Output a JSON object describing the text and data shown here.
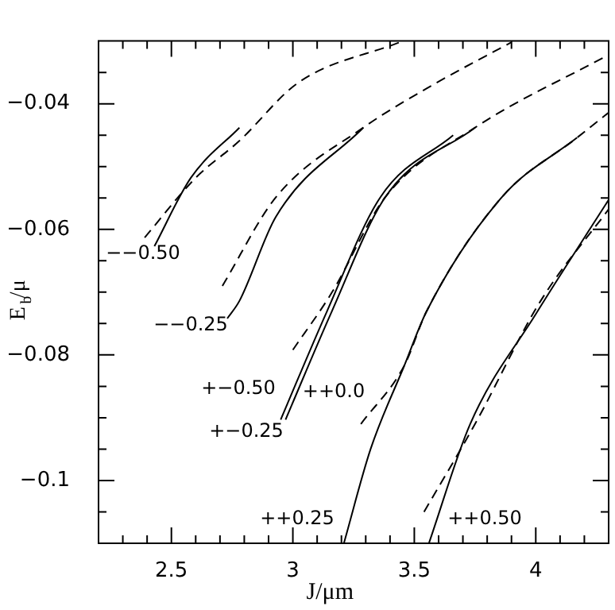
{
  "chart_data": {
    "type": "line",
    "xlabel": "J/μm",
    "ylabel": "E$_{b}$/μ",
    "xlim": [
      2.2,
      4.3
    ],
    "ylim": [
      -0.11,
      -0.03
    ],
    "xticks": [
      {
        "value": 2.2,
        "label": null
      },
      {
        "value": 2.3,
        "label": null
      },
      {
        "value": 2.4,
        "label": null
      },
      2.5,
      {
        "value": 2.6,
        "label": null
      },
      {
        "value": 2.7,
        "label": null
      },
      {
        "value": 2.8,
        "label": null
      },
      {
        "value": 2.9,
        "label": null
      },
      3,
      {
        "value": 3.1,
        "label": null
      },
      {
        "value": 3.2,
        "label": null
      },
      {
        "value": 3.3,
        "label": null
      },
      {
        "value": 3.4,
        "label": null
      },
      3.5,
      {
        "value": 3.6,
        "label": null
      },
      {
        "value": 3.7,
        "label": null
      },
      {
        "value": 3.8,
        "label": null
      },
      {
        "value": 3.9,
        "label": null
      },
      4,
      {
        "value": 4.1,
        "label": null
      },
      {
        "value": 4.2,
        "label": null
      }
    ],
    "yticks": [
      {
        "value": -0.105,
        "label": null
      },
      {
        "value": -0.1,
        "label": "−0.1"
      },
      {
        "value": -0.095,
        "label": null
      },
      {
        "value": -0.09,
        "label": null
      },
      {
        "value": -0.085,
        "label": null
      },
      {
        "value": -0.08,
        "label": "−0.08"
      },
      {
        "value": -0.075,
        "label": null
      },
      {
        "value": -0.07,
        "label": null
      },
      {
        "value": -0.065,
        "label": null
      },
      {
        "value": -0.06,
        "label": "−0.06"
      },
      {
        "value": -0.055,
        "label": null
      },
      {
        "value": -0.05,
        "label": null
      },
      {
        "value": -0.045,
        "label": null
      },
      {
        "value": -0.04,
        "label": "−0.04"
      },
      {
        "value": -0.035,
        "label": null
      }
    ],
    "grid": false,
    "legend": false,
    "marker": "none",
    "series": [
      {
        "color": "#000000",
        "line_style": "solid",
        "x": [
          2.43,
          2.58,
          2.78
        ],
        "values": [
          -0.0627,
          -0.0518,
          -0.0438
        ]
      },
      {
        "color": "#000000",
        "line_style": "dashed",
        "x": [
          2.39,
          2.6,
          2.78,
          3.02,
          3.44
        ],
        "values": [
          -0.0613,
          -0.0518,
          -0.0459,
          -0.0367,
          -0.0302
        ]
      },
      {
        "color": "#000000",
        "line_style": "solid",
        "x": [
          2.73,
          2.78,
          2.93,
          3.29
        ],
        "values": [
          -0.0742,
          -0.0714,
          -0.058,
          -0.0438
        ]
      },
      {
        "color": "#000000",
        "line_style": "dashed",
        "x": [
          2.71,
          2.93,
          3.29,
          3.59,
          3.9
        ],
        "values": [
          -0.069,
          -0.0549,
          -0.0438,
          -0.0367,
          -0.0302
        ]
      },
      {
        "color": "#000000",
        "line_style": "solid",
        "x": [
          2.95,
          3.14,
          3.36,
          3.66
        ],
        "values": [
          -0.0903,
          -0.0731,
          -0.0549,
          -0.045
        ]
      },
      {
        "color": "#000000",
        "line_style": "solid",
        "x": [
          2.97,
          3.16,
          3.38,
          3.75
        ],
        "values": [
          -0.0903,
          -0.0731,
          -0.0549,
          -0.0438
        ]
      },
      {
        "color": "#000000",
        "line_style": "dashed",
        "x": [
          3.0,
          3.16,
          3.38,
          3.75,
          4.3
        ],
        "values": [
          -0.0792,
          -0.0701,
          -0.0549,
          -0.0438,
          -0.0322
        ]
      },
      {
        "color": "#000000",
        "line_style": "solid",
        "x": [
          3.21,
          3.32,
          3.46,
          3.55,
          3.86,
          4.17
        ],
        "values": [
          -0.11,
          -0.095,
          -0.0816,
          -0.0731,
          -0.0549,
          -0.0454
        ]
      },
      {
        "color": "#000000",
        "line_style": "dashed",
        "x": [
          3.28,
          3.46,
          3.55,
          3.86,
          4.17,
          4.3
        ],
        "values": [
          -0.091,
          -0.0816,
          -0.0731,
          -0.0549,
          -0.0454,
          -0.0414
        ]
      },
      {
        "color": "#000000",
        "line_style": "solid",
        "x": [
          3.56,
          3.73,
          4.0,
          4.3
        ],
        "values": [
          -0.11,
          -0.091,
          -0.0735,
          -0.0553
        ]
      },
      {
        "color": "#000000",
        "line_style": "dashed",
        "x": [
          3.54,
          3.75,
          4.02,
          4.3
        ],
        "values": [
          -0.105,
          -0.091,
          -0.0714,
          -0.0568
        ]
      }
    ],
    "annotations": [
      "−−0.50",
      "−−0.25",
      "+−0.50",
      "+−0.25",
      "++0.0",
      "++0.25",
      "++0.50"
    ]
  }
}
